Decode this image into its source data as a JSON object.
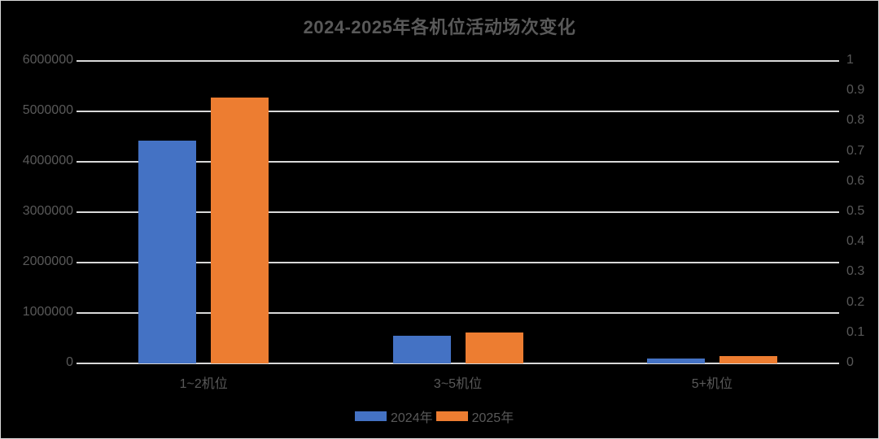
{
  "chart_data": {
    "type": "bar",
    "title": "2024-2025年各机位活动场次变化",
    "categories": [
      "1~2机位",
      "3~5机位",
      "5+机位"
    ],
    "series": [
      {
        "name": "2024年",
        "color": "#4472C4",
        "values": [
          4420000,
          550000,
          100000
        ]
      },
      {
        "name": "2025年",
        "color": "#ED7D31",
        "values": [
          5270000,
          610000,
          150000
        ]
      }
    ],
    "xlabel": "",
    "ylabel": "",
    "ylim": [
      0,
      6000000
    ],
    "y_ticks": [
      "6000000",
      "5000000",
      "4000000",
      "3000000",
      "2000000",
      "1000000",
      "0"
    ],
    "y2lim": [
      0,
      1
    ],
    "y2_ticks": [
      "1",
      "0.9",
      "0.8",
      "0.7",
      "0.6",
      "0.5",
      "0.4",
      "0.3",
      "0.2",
      "0.1",
      "0"
    ],
    "grid": true,
    "legend_position": "bottom"
  },
  "legend": {
    "items": [
      {
        "label": "2024年",
        "color": "#4472C4"
      },
      {
        "label": "2025年",
        "color": "#ED7D31"
      }
    ]
  }
}
